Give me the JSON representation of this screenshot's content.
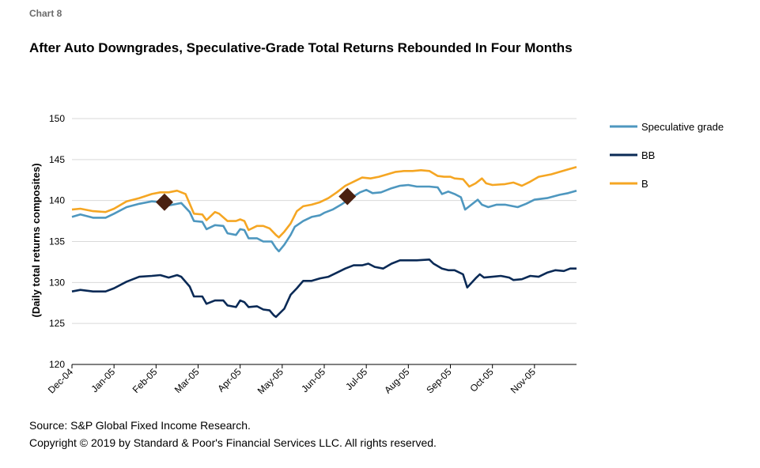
{
  "chart_number": "Chart 8",
  "footer": {
    "source": "Source: S&P Global Fixed Income Research.",
    "copyright": "Copyright © 2019 by Standard & Poor's Financial Services LLC. All rights reserved."
  },
  "chart_data": {
    "type": "line",
    "title": "After Auto Downgrades, Speculative-Grade Total Returns Rebounded In Four Months",
    "xlabel": "",
    "ylabel": "(Daily total returns composites)",
    "ylim": [
      120,
      150
    ],
    "yticks": [
      120,
      125,
      130,
      135,
      140,
      145,
      150
    ],
    "grid": "horizontal",
    "legend_position": "right",
    "xrange": [
      0,
      12
    ],
    "xticks": [
      {
        "x": 0,
        "label": "Dec-04"
      },
      {
        "x": 1,
        "label": "Jan-05"
      },
      {
        "x": 2,
        "label": "Feb-05"
      },
      {
        "x": 3,
        "label": "Mar-05"
      },
      {
        "x": 4,
        "label": "Apr-05"
      },
      {
        "x": 5,
        "label": "May-05"
      },
      {
        "x": 6,
        "label": "Jun-05"
      },
      {
        "x": 7,
        "label": "Jul-05"
      },
      {
        "x": 8,
        "label": "Aug-05"
      },
      {
        "x": 9,
        "label": "Sep-05"
      },
      {
        "x": 10,
        "label": "Oct-05"
      },
      {
        "x": 11,
        "label": "Nov-05"
      }
    ],
    "series": [
      {
        "name": "Speculative grade",
        "color": "#4e97bf",
        "points": [
          [
            0,
            138.0
          ],
          [
            0.2,
            138.3
          ],
          [
            0.5,
            137.9
          ],
          [
            0.8,
            137.9
          ],
          [
            1,
            138.4
          ],
          [
            1.3,
            139.2
          ],
          [
            1.6,
            139.6
          ],
          [
            1.9,
            139.9
          ],
          [
            2.1,
            139.8
          ],
          [
            2.3,
            139.4
          ],
          [
            2.6,
            139.7
          ],
          [
            2.8,
            138.6
          ],
          [
            2.9,
            137.5
          ],
          [
            3.1,
            137.4
          ],
          [
            3.2,
            136.5
          ],
          [
            3.4,
            137.0
          ],
          [
            3.6,
            136.9
          ],
          [
            3.7,
            136.0
          ],
          [
            3.9,
            135.8
          ],
          [
            4.0,
            136.5
          ],
          [
            4.1,
            136.4
          ],
          [
            4.2,
            135.4
          ],
          [
            4.4,
            135.4
          ],
          [
            4.55,
            135.0
          ],
          [
            4.75,
            135.0
          ],
          [
            4.85,
            134.2
          ],
          [
            4.92,
            133.8
          ],
          [
            5.05,
            134.6
          ],
          [
            5.2,
            135.8
          ],
          [
            5.3,
            136.8
          ],
          [
            5.5,
            137.5
          ],
          [
            5.7,
            138.0
          ],
          [
            5.9,
            138.2
          ],
          [
            6.0,
            138.5
          ],
          [
            6.2,
            138.9
          ],
          [
            6.4,
            139.5
          ],
          [
            6.55,
            140.0
          ],
          [
            6.7,
            140.5
          ],
          [
            6.85,
            141.0
          ],
          [
            7.0,
            141.3
          ],
          [
            7.15,
            140.9
          ],
          [
            7.35,
            141.0
          ],
          [
            7.6,
            141.5
          ],
          [
            7.8,
            141.8
          ],
          [
            8.0,
            141.9
          ],
          [
            8.2,
            141.7
          ],
          [
            8.5,
            141.7
          ],
          [
            8.7,
            141.6
          ],
          [
            8.8,
            140.8
          ],
          [
            8.95,
            141.1
          ],
          [
            9.1,
            140.8
          ],
          [
            9.25,
            140.4
          ],
          [
            9.35,
            138.9
          ],
          [
            9.5,
            139.5
          ],
          [
            9.65,
            140.1
          ],
          [
            9.75,
            139.5
          ],
          [
            9.9,
            139.2
          ],
          [
            10.1,
            139.5
          ],
          [
            10.3,
            139.5
          ],
          [
            10.6,
            139.2
          ],
          [
            10.8,
            139.6
          ],
          [
            11.0,
            140.1
          ],
          [
            11.3,
            140.3
          ],
          [
            11.6,
            140.7
          ],
          [
            11.8,
            140.9
          ],
          [
            12.0,
            141.2
          ]
        ]
      },
      {
        "name": "BB",
        "color": "#0a2a56",
        "points": [
          [
            0,
            128.9
          ],
          [
            0.2,
            129.1
          ],
          [
            0.5,
            128.9
          ],
          [
            0.8,
            128.9
          ],
          [
            1,
            129.3
          ],
          [
            1.3,
            130.1
          ],
          [
            1.6,
            130.7
          ],
          [
            1.9,
            130.8
          ],
          [
            2.1,
            130.9
          ],
          [
            2.3,
            130.6
          ],
          [
            2.5,
            130.9
          ],
          [
            2.6,
            130.7
          ],
          [
            2.8,
            129.5
          ],
          [
            2.9,
            128.3
          ],
          [
            3.1,
            128.3
          ],
          [
            3.2,
            127.4
          ],
          [
            3.4,
            127.8
          ],
          [
            3.6,
            127.8
          ],
          [
            3.7,
            127.2
          ],
          [
            3.9,
            127.0
          ],
          [
            4.0,
            127.8
          ],
          [
            4.1,
            127.6
          ],
          [
            4.2,
            127.0
          ],
          [
            4.4,
            127.1
          ],
          [
            4.55,
            126.7
          ],
          [
            4.7,
            126.6
          ],
          [
            4.8,
            126.0
          ],
          [
            4.85,
            125.8
          ],
          [
            5.05,
            126.8
          ],
          [
            5.2,
            128.5
          ],
          [
            5.35,
            129.3
          ],
          [
            5.5,
            130.2
          ],
          [
            5.7,
            130.2
          ],
          [
            5.9,
            130.5
          ],
          [
            6.1,
            130.7
          ],
          [
            6.3,
            131.2
          ],
          [
            6.5,
            131.7
          ],
          [
            6.7,
            132.1
          ],
          [
            6.9,
            132.1
          ],
          [
            7.05,
            132.3
          ],
          [
            7.2,
            131.9
          ],
          [
            7.4,
            131.7
          ],
          [
            7.6,
            132.3
          ],
          [
            7.8,
            132.7
          ],
          [
            8.0,
            132.7
          ],
          [
            8.2,
            132.7
          ],
          [
            8.5,
            132.8
          ],
          [
            8.6,
            132.3
          ],
          [
            8.8,
            131.7
          ],
          [
            8.95,
            131.5
          ],
          [
            9.1,
            131.5
          ],
          [
            9.3,
            131.0
          ],
          [
            9.4,
            129.4
          ],
          [
            9.6,
            130.5
          ],
          [
            9.7,
            131.0
          ],
          [
            9.8,
            130.6
          ],
          [
            10.0,
            130.7
          ],
          [
            10.2,
            130.8
          ],
          [
            10.4,
            130.6
          ],
          [
            10.5,
            130.3
          ],
          [
            10.7,
            130.4
          ],
          [
            10.9,
            130.8
          ],
          [
            11.1,
            130.7
          ],
          [
            11.3,
            131.2
          ],
          [
            11.5,
            131.5
          ],
          [
            11.7,
            131.4
          ],
          [
            11.85,
            131.7
          ],
          [
            12.0,
            131.7
          ]
        ]
      },
      {
        "name": "B",
        "color": "#f5a623",
        "points": [
          [
            0,
            138.9
          ],
          [
            0.2,
            139.0
          ],
          [
            0.5,
            138.7
          ],
          [
            0.8,
            138.6
          ],
          [
            1,
            139.0
          ],
          [
            1.3,
            139.9
          ],
          [
            1.6,
            140.3
          ],
          [
            1.9,
            140.8
          ],
          [
            2.1,
            141.0
          ],
          [
            2.3,
            141.0
          ],
          [
            2.5,
            141.2
          ],
          [
            2.7,
            140.8
          ],
          [
            2.8,
            139.6
          ],
          [
            2.9,
            138.4
          ],
          [
            3.1,
            138.3
          ],
          [
            3.2,
            137.6
          ],
          [
            3.4,
            138.6
          ],
          [
            3.5,
            138.4
          ],
          [
            3.7,
            137.5
          ],
          [
            3.9,
            137.5
          ],
          [
            4.0,
            137.7
          ],
          [
            4.1,
            137.5
          ],
          [
            4.2,
            136.4
          ],
          [
            4.4,
            136.9
          ],
          [
            4.55,
            136.9
          ],
          [
            4.7,
            136.6
          ],
          [
            4.85,
            135.8
          ],
          [
            4.92,
            135.5
          ],
          [
            5.05,
            136.2
          ],
          [
            5.2,
            137.2
          ],
          [
            5.35,
            138.7
          ],
          [
            5.5,
            139.3
          ],
          [
            5.7,
            139.5
          ],
          [
            5.9,
            139.8
          ],
          [
            6.1,
            140.3
          ],
          [
            6.3,
            141.0
          ],
          [
            6.5,
            141.8
          ],
          [
            6.7,
            142.3
          ],
          [
            6.9,
            142.8
          ],
          [
            7.1,
            142.7
          ],
          [
            7.3,
            142.9
          ],
          [
            7.5,
            143.2
          ],
          [
            7.7,
            143.5
          ],
          [
            7.9,
            143.6
          ],
          [
            8.1,
            143.6
          ],
          [
            8.3,
            143.7
          ],
          [
            8.5,
            143.6
          ],
          [
            8.7,
            143.0
          ],
          [
            8.85,
            142.9
          ],
          [
            9.0,
            142.9
          ],
          [
            9.1,
            142.7
          ],
          [
            9.3,
            142.6
          ],
          [
            9.45,
            141.7
          ],
          [
            9.6,
            142.1
          ],
          [
            9.75,
            142.7
          ],
          [
            9.85,
            142.1
          ],
          [
            10.0,
            141.9
          ],
          [
            10.3,
            142.0
          ],
          [
            10.5,
            142.2
          ],
          [
            10.7,
            141.8
          ],
          [
            10.9,
            142.3
          ],
          [
            11.1,
            142.9
          ],
          [
            11.4,
            143.2
          ],
          [
            11.6,
            143.5
          ],
          [
            11.8,
            143.8
          ],
          [
            12.0,
            144.1
          ]
        ]
      }
    ],
    "markers": [
      {
        "shape": "diamond",
        "color": "#4a2010",
        "x": 2.2,
        "y": 139.8
      },
      {
        "shape": "diamond",
        "color": "#4a2010",
        "x": 6.55,
        "y": 140.5
      }
    ]
  }
}
